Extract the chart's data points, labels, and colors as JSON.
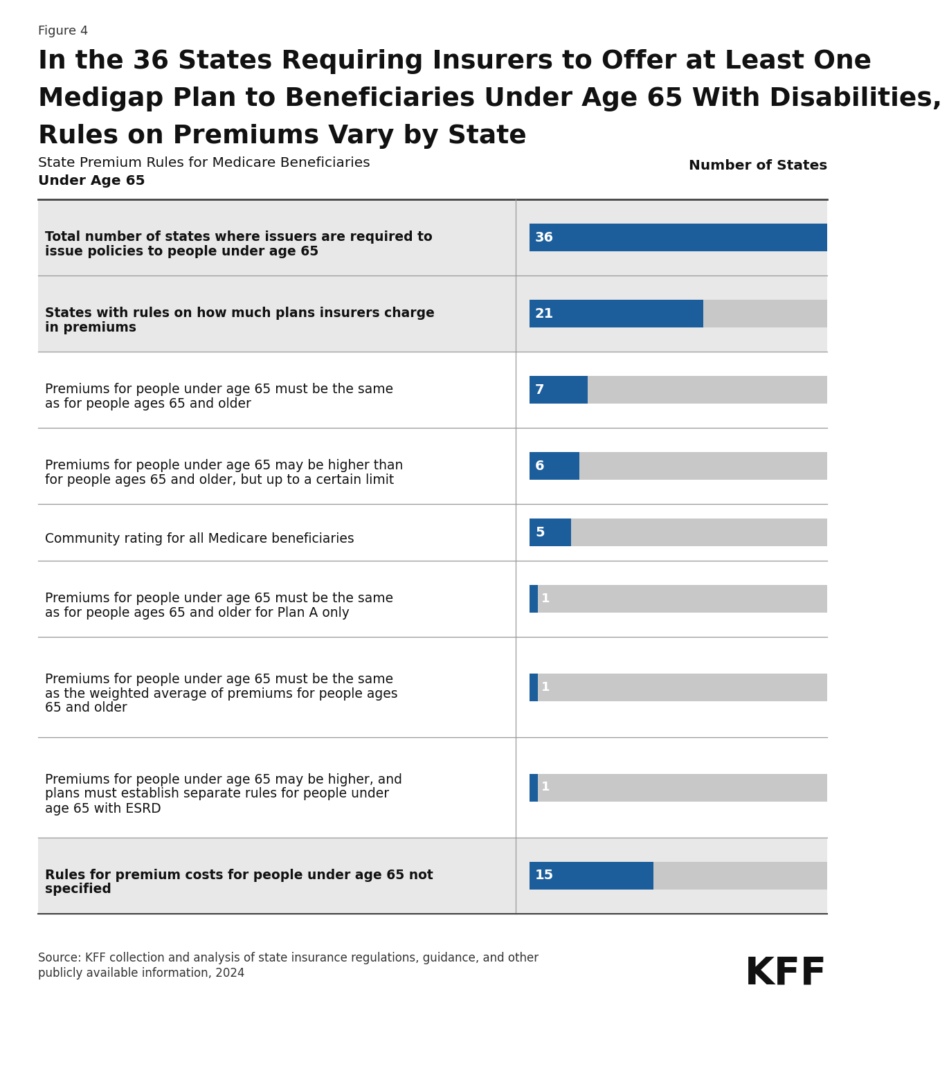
{
  "figure_label": "Figure 4",
  "title_line1": "In the 36 States Requiring Insurers to Offer at Least One",
  "title_line2": "Medigap Plan to Beneficiaries Under Age 65 With Disabilities,",
  "title_line3": "Rules on Premiums Vary by State",
  "col_left_header_line1": "State Premium Rules for Medicare Beneficiaries",
  "col_left_header_line2": "Under Age 65",
  "col_right_header": "Number of States",
  "rows": [
    {
      "label_lines": [
        "Total number of states where issuers are required to",
        "issue policies to people under age 65"
      ],
      "value": 36,
      "max_val": 36,
      "bold": true,
      "bg_color": "#e8e8e8"
    },
    {
      "label_lines": [
        "States with rules on how much plans insurers charge",
        "in premiums"
      ],
      "value": 21,
      "max_val": 36,
      "bold": true,
      "bg_color": "#e8e8e8"
    },
    {
      "label_lines": [
        "Premiums for people under age 65 must be the same",
        "as for people ages 65 and older"
      ],
      "value": 7,
      "max_val": 36,
      "bold": false,
      "bg_color": "#ffffff"
    },
    {
      "label_lines": [
        "Premiums for people under age 65 may be higher than",
        "for people ages 65 and older, but up to a certain limit"
      ],
      "value": 6,
      "max_val": 36,
      "bold": false,
      "bg_color": "#ffffff"
    },
    {
      "label_lines": [
        "Community rating for all Medicare beneficiaries"
      ],
      "value": 5,
      "max_val": 36,
      "bold": false,
      "bg_color": "#ffffff"
    },
    {
      "label_lines": [
        "Premiums for people under age 65 must be the same",
        "as for people ages 65 and older for Plan A only"
      ],
      "value": 1,
      "max_val": 36,
      "bold": false,
      "bg_color": "#ffffff"
    },
    {
      "label_lines": [
        "Premiums for people under age 65 must be the same",
        "as the weighted average of premiums for people ages",
        "65 and older"
      ],
      "value": 1,
      "max_val": 36,
      "bold": false,
      "bg_color": "#ffffff"
    },
    {
      "label_lines": [
        "Premiums for people under age 65 may be higher, and",
        "plans must establish separate rules for people under",
        "age 65 with ESRD"
      ],
      "value": 1,
      "max_val": 36,
      "bold": false,
      "bg_color": "#ffffff"
    },
    {
      "label_lines": [
        "Rules for premium costs for people under age 65 not",
        "specified"
      ],
      "value": 15,
      "max_val": 36,
      "bold": true,
      "bg_color": "#e8e8e8"
    }
  ],
  "bar_color": "#1b5e9b",
  "bar_bg_color": "#c8c8c8",
  "source_text_line1": "Source: KFF collection and analysis of state insurance regulations, guidance, and other",
  "source_text_line2": "publicly available information, 2024",
  "kff_logo": "KFF",
  "fig_width": 12.2,
  "fig_height": 15.56,
  "background_color": "#ffffff"
}
